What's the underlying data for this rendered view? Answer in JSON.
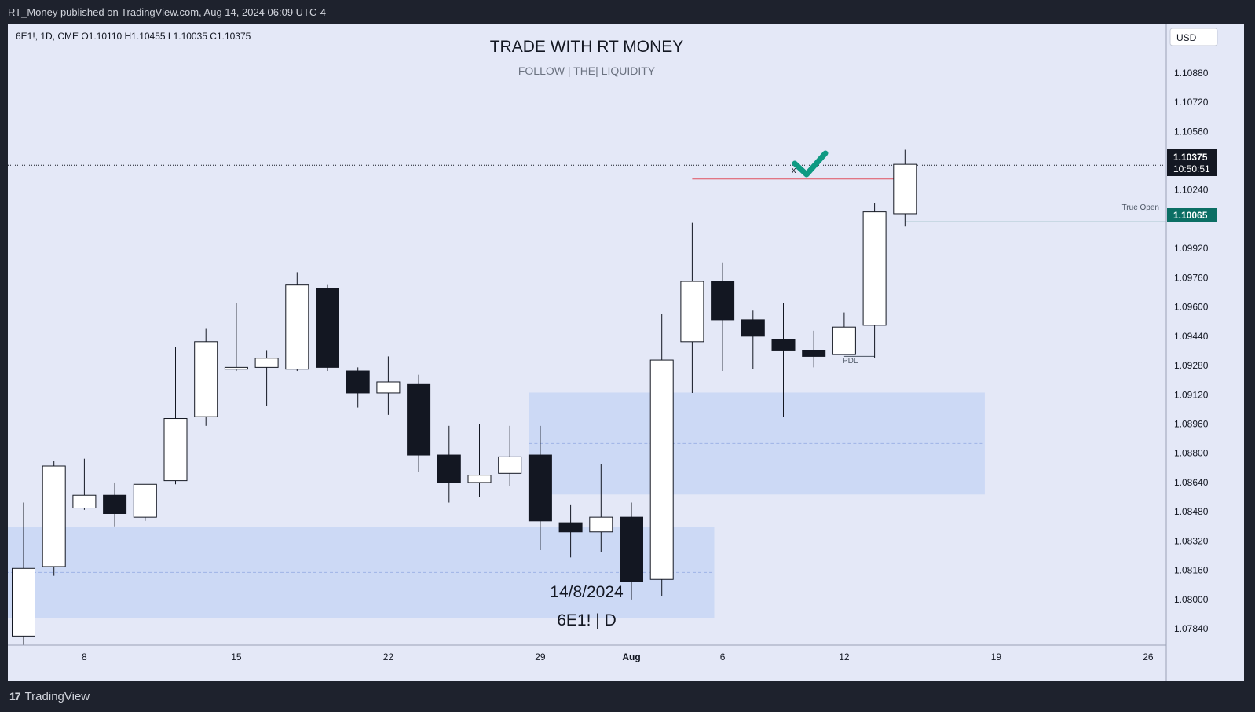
{
  "header": {
    "published_text": "RT_Money published on TradingView.com, Aug 14, 2024 06:09 UTC-4"
  },
  "legend": {
    "ohlc_text": "6E1!, 1D, CME  O1.10110  H1.10455  L1.10035  C1.10375"
  },
  "watermark": {
    "title": "TRADE WITH RT MONEY",
    "subtitle": "FOLLOW   |   THE|   LIQUIDITY",
    "date": "14/8/2024",
    "symbol": "6E1! | D"
  },
  "price_axis": {
    "currency": "USD",
    "last_price": "1.10375",
    "countdown": "10:50:51",
    "true_open_price": "1.10065"
  },
  "annotations": {
    "true_open_label": "True Open",
    "pdl_label": "PDL",
    "x_mark": "x"
  },
  "footer": {
    "brand": "TradingView",
    "brand_mark": "17"
  },
  "colors": {
    "background": "#e4e8f7",
    "bull_body": "#ffffff",
    "bear_body": "#131722",
    "zone_fill": "#c8d6f5",
    "true_open_line": "#0b6e64",
    "liquidity_line": "#e04f5f",
    "check_mark": "#0f9a83"
  },
  "chart_data": {
    "type": "candlestick",
    "symbol": "6E1!",
    "timeframe": "1D",
    "exchange": "CME",
    "ylim": [
      1.0775,
      1.1115
    ],
    "y_ticks": [
      "1.10880",
      "1.10720",
      "1.10560",
      "1.10240",
      "1.09920",
      "1.09760",
      "1.09600",
      "1.09440",
      "1.09280",
      "1.09120",
      "1.08960",
      "1.08800",
      "1.08640",
      "1.08480",
      "1.08320",
      "1.08160",
      "1.08000",
      "1.07840"
    ],
    "x_ticks": [
      {
        "label": "8",
        "index": 2
      },
      {
        "label": "15",
        "index": 7
      },
      {
        "label": "22",
        "index": 12
      },
      {
        "label": "29",
        "index": 17
      },
      {
        "label": "Aug",
        "index": 20
      },
      {
        "label": "6",
        "index": 23
      },
      {
        "label": "12",
        "index": 27
      },
      {
        "label": "19",
        "index": 32
      },
      {
        "label": "26",
        "index": 37
      }
    ],
    "candles": [
      {
        "o": 1.078,
        "h": 1.0853,
        "l": 1.0775,
        "c": 1.0817
      },
      {
        "o": 1.0818,
        "h": 1.0876,
        "l": 1.0813,
        "c": 1.0873
      },
      {
        "o": 1.085,
        "h": 1.0877,
        "l": 1.0849,
        "c": 1.0857
      },
      {
        "o": 1.0857,
        "h": 1.0864,
        "l": 1.084,
        "c": 1.0847
      },
      {
        "o": 1.0845,
        "h": 1.0863,
        "l": 1.0843,
        "c": 1.0863
      },
      {
        "o": 1.0865,
        "h": 1.0938,
        "l": 1.0863,
        "c": 1.0899
      },
      {
        "o": 1.09,
        "h": 1.0948,
        "l": 1.0895,
        "c": 1.0941
      },
      {
        "o": 1.0926,
        "h": 1.0962,
        "l": 1.0925,
        "c": 1.0927
      },
      {
        "o": 1.0927,
        "h": 1.0936,
        "l": 1.0906,
        "c": 1.0932
      },
      {
        "o": 1.0926,
        "h": 1.0979,
        "l": 1.0925,
        "c": 1.0972
      },
      {
        "o": 1.097,
        "h": 1.0972,
        "l": 1.0925,
        "c": 1.0927
      },
      {
        "o": 1.0925,
        "h": 1.0927,
        "l": 1.0905,
        "c": 1.0913
      },
      {
        "o": 1.0913,
        "h": 1.0933,
        "l": 1.0901,
        "c": 1.0919
      },
      {
        "o": 1.0918,
        "h": 1.0923,
        "l": 1.087,
        "c": 1.0879
      },
      {
        "o": 1.0879,
        "h": 1.0895,
        "l": 1.0853,
        "c": 1.0864
      },
      {
        "o": 1.0864,
        "h": 1.0896,
        "l": 1.0856,
        "c": 1.0868
      },
      {
        "o": 1.0869,
        "h": 1.0895,
        "l": 1.0862,
        "c": 1.0878
      },
      {
        "o": 1.0879,
        "h": 1.0895,
        "l": 1.0827,
        "c": 1.0843
      },
      {
        "o": 1.0842,
        "h": 1.0852,
        "l": 1.0823,
        "c": 1.0837
      },
      {
        "o": 1.0837,
        "h": 1.0874,
        "l": 1.0826,
        "c": 1.0845
      },
      {
        "o": 1.0845,
        "h": 1.0853,
        "l": 1.08,
        "c": 1.081
      },
      {
        "o": 1.0811,
        "h": 1.0956,
        "l": 1.0802,
        "c": 1.0931
      },
      {
        "o": 1.0941,
        "h": 1.1006,
        "l": 1.0913,
        "c": 1.0974
      },
      {
        "o": 1.0974,
        "h": 1.0984,
        "l": 1.0925,
        "c": 1.0953
      },
      {
        "o": 1.0953,
        "h": 1.0958,
        "l": 1.0926,
        "c": 1.0944
      },
      {
        "o": 1.0942,
        "h": 1.0962,
        "l": 1.09,
        "c": 1.0936
      },
      {
        "o": 1.0936,
        "h": 1.0947,
        "l": 1.0927,
        "c": 1.0933
      },
      {
        "o": 1.0934,
        "h": 1.0957,
        "l": 1.0934,
        "c": 1.0949
      },
      {
        "o": 1.095,
        "h": 1.1017,
        "l": 1.0932,
        "c": 1.1012
      },
      {
        "o": 1.1011,
        "h": 1.1046,
        "l": 1.1004,
        "c": 1.1038
      }
    ],
    "zones": [
      {
        "x_from": -0.4,
        "x_to": 23.1,
        "y_low": 1.07898,
        "y_high": 1.08398
      },
      {
        "x_from": 17.0,
        "x_to": 32.0,
        "y_low": 1.08574,
        "y_high": 1.09132
      }
    ],
    "levels": [
      {
        "name": "last_price",
        "y": 1.10375,
        "style": "dotted"
      },
      {
        "name": "liquidity",
        "y": 1.103,
        "x_from": 22,
        "x_to": 29
      },
      {
        "name": "true_open",
        "y": 1.10065,
        "x_from": 29
      }
    ],
    "pdl": {
      "y": 1.0933,
      "x_from": 27,
      "x_to": 28
    }
  }
}
